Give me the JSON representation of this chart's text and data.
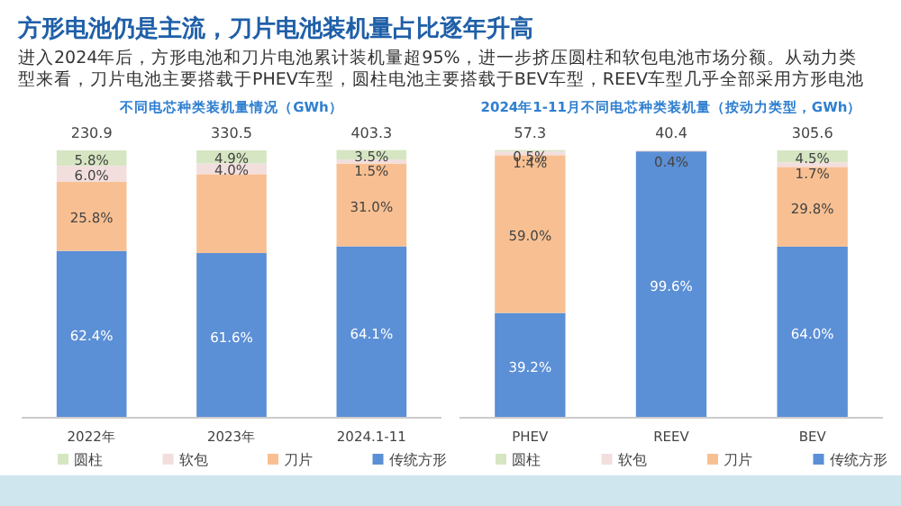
{
  "chart_data": [
    {
      "type": "other",
      "title": "方形电池仍是主流，刀片电池装机量占比逐年升高",
      "subtitle": "进入2024年后，方形电池和刀片电池累计装机量超95%，进一步挤压圆柱和软包电池市场分额。从动力类型来看，刀片电池主要搭载于PHEV车型，圆柱电池主要搭载于BEV车型，REEV车型几乎全部采用方形电池"
    },
    {
      "type": "bar",
      "stacked": true,
      "title": "不同电芯种类装机量情况（GWh）",
      "categories": [
        "2022年",
        "2023年",
        "2024.1-11"
      ],
      "ylim": [
        0,
        101
      ],
      "legend": "bottom",
      "annotations": [
        "230.9",
        "330.5",
        "403.3"
      ],
      "series": [
        {
          "name": "传统方形",
          "color": "#5b8fd6",
          "values": [
            62.4,
            61.6,
            64.1
          ],
          "value_labels": [
            "62.4%",
            "61.6%",
            "64.1%"
          ]
        },
        {
          "name": "刀片",
          "color": "#f8c092",
          "values": [
            25.8,
            29.5,
            31.0
          ],
          "value_labels": [
            "25.8%",
            null,
            "31.0%"
          ]
        },
        {
          "name": "软包",
          "color": "#f3dede",
          "values": [
            6.0,
            4.0,
            1.5
          ],
          "value_labels": [
            "6.0%",
            "4.0%",
            "1.5%"
          ]
        },
        {
          "name": "圆柱",
          "color": "#d6e6c2",
          "values": [
            5.8,
            4.9,
            3.5
          ],
          "value_labels": [
            "5.8%",
            "4.9%",
            "3.5%"
          ]
        }
      ]
    },
    {
      "type": "bar",
      "stacked": true,
      "title": "2024年1-11月不同电芯种类装机量（按动力类型，GWh）",
      "categories": [
        "PHEV",
        "REEV",
        "BEV"
      ],
      "ylim": [
        0,
        101
      ],
      "legend": "bottom",
      "annotations": [
        "57.3",
        "40.4",
        "305.6"
      ],
      "series": [
        {
          "name": "传统方形",
          "color": "#5b8fd6",
          "values": [
            39.2,
            99.6,
            64.0
          ],
          "value_labels": [
            "39.2%",
            "99.6%",
            "64.0%"
          ]
        },
        {
          "name": "刀片",
          "color": "#f8c092",
          "values": [
            59.0,
            null,
            29.8
          ],
          "value_labels": [
            "59.0%",
            null,
            "29.8%"
          ]
        },
        {
          "name": "软包",
          "color": "#f3dede",
          "values": [
            1.4,
            0.4,
            1.7
          ],
          "value_labels": [
            "1.4%",
            "0.4%",
            "1.7%"
          ]
        },
        {
          "name": "圆柱",
          "color": "#d6e6c2",
          "values": [
            0.5,
            null,
            4.5
          ],
          "value_labels": [
            "0.5%",
            null,
            "4.5%"
          ]
        }
      ]
    }
  ]
}
